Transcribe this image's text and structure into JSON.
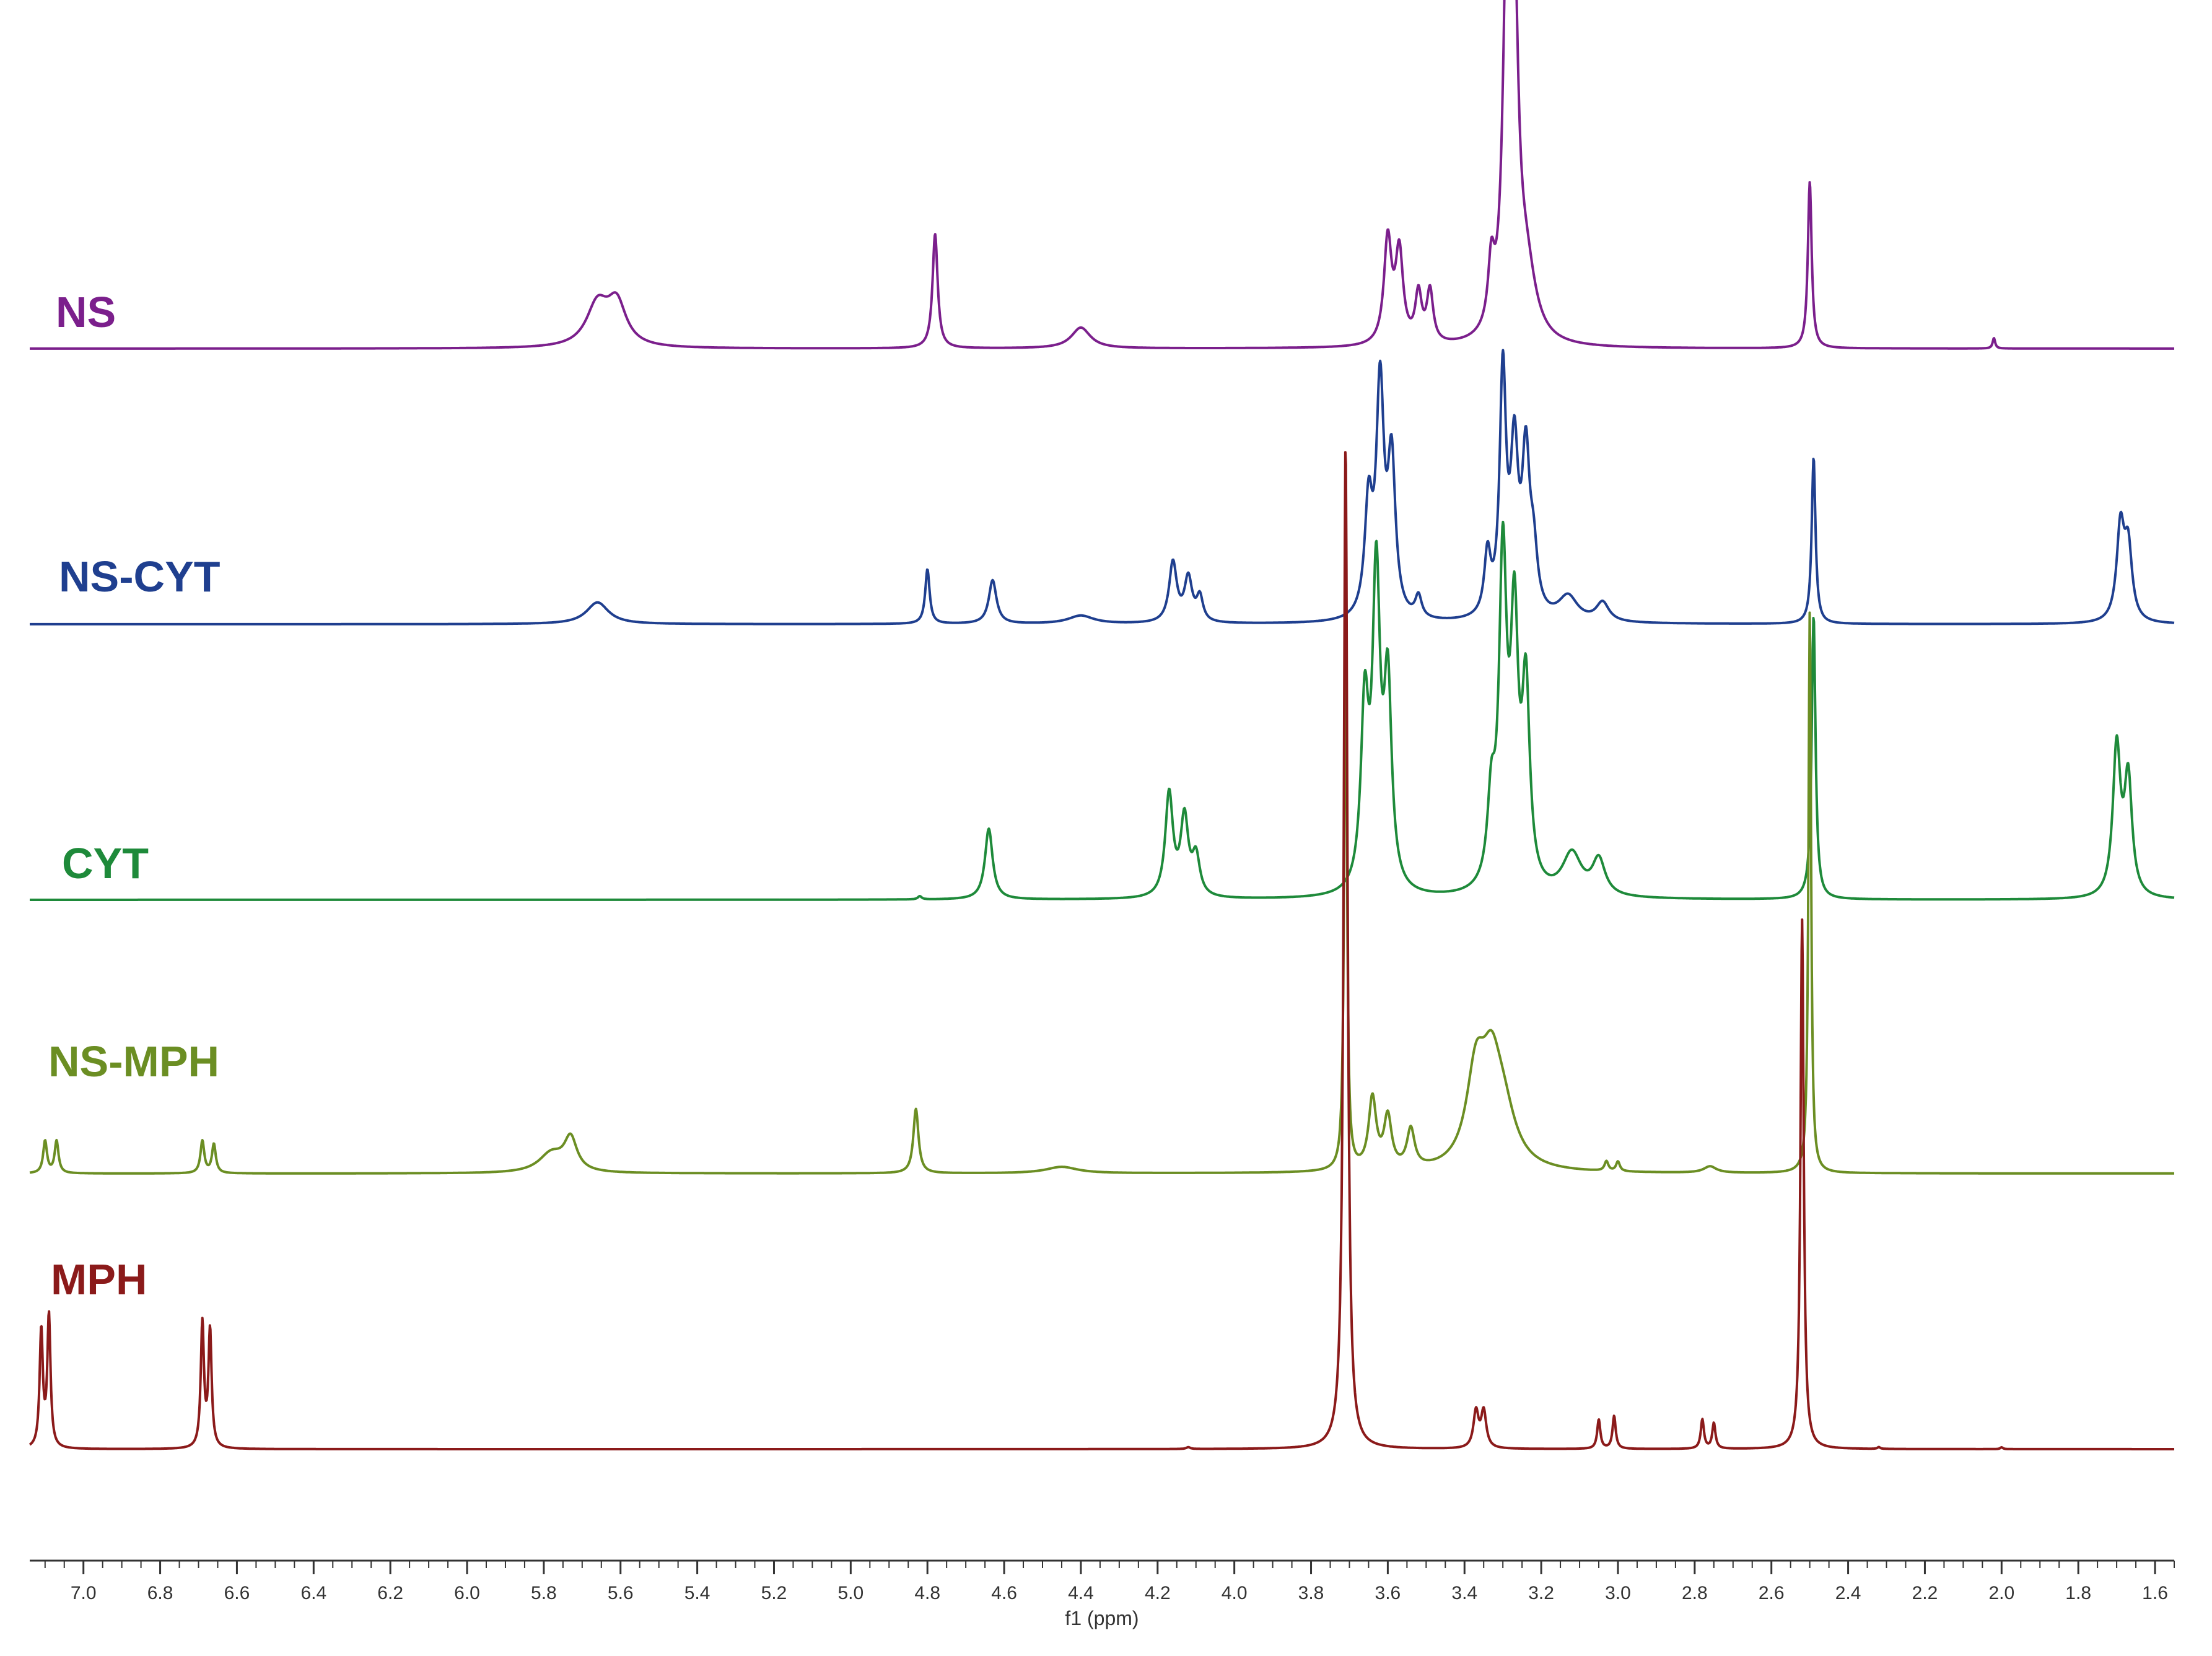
{
  "chart_data": {
    "type": "line",
    "xlabel": "f1 (ppm)",
    "xlim": [
      7.14,
      1.55
    ],
    "x_reversed": true,
    "grid": false,
    "x_ticks": [
      7.0,
      6.8,
      6.6,
      6.4,
      6.2,
      6.0,
      5.8,
      5.6,
      5.4,
      5.2,
      5.0,
      4.8,
      4.6,
      4.4,
      4.2,
      4.0,
      3.8,
      3.6,
      3.4,
      3.2,
      3.0,
      2.8,
      2.6,
      2.4,
      2.2,
      2.0,
      1.8,
      1.6
    ],
    "x_tick_labels": [
      "7.0",
      "6.8",
      "6.6",
      "6.4",
      "6.2",
      "6.0",
      "5.8",
      "5.6",
      "5.4",
      "5.2",
      "5.0",
      "4.8",
      "4.6",
      "4.4",
      "4.2",
      "4.0",
      "3.8",
      "3.6",
      "3.4",
      "3.2",
      "3.0",
      "2.8",
      "2.6",
      "2.4",
      "2.2",
      "2.0",
      "1.8",
      "1.6"
    ],
    "y_units": "relative intensity (stacked traces)",
    "series": [
      {
        "name": "NS",
        "color": "#7B1F8C",
        "x_range": [
          7.14,
          1.55
        ],
        "peaks": [
          {
            "x": 5.66,
            "h": 0.12,
            "w": 0.035
          },
          {
            "x": 5.61,
            "h": 0.12,
            "w": 0.03
          },
          {
            "x": 4.78,
            "h": 0.33,
            "w": 0.008
          },
          {
            "x": 4.4,
            "h": 0.06,
            "w": 0.03
          },
          {
            "x": 3.6,
            "h": 0.3,
            "w": 0.012
          },
          {
            "x": 3.57,
            "h": 0.26,
            "w": 0.012
          },
          {
            "x": 3.52,
            "h": 0.14,
            "w": 0.01
          },
          {
            "x": 3.49,
            "h": 0.15,
            "w": 0.01
          },
          {
            "x": 3.33,
            "h": 0.18,
            "w": 0.01
          },
          {
            "x": 3.29,
            "h": 1.0,
            "w": 0.012
          },
          {
            "x": 3.27,
            "h": 0.88,
            "w": 0.012
          },
          {
            "x": 3.24,
            "h": 0.2,
            "w": 0.03
          },
          {
            "x": 2.5,
            "h": 0.48,
            "w": 0.006
          },
          {
            "x": 2.02,
            "h": 0.03,
            "w": 0.004
          }
        ]
      },
      {
        "name": "NS-CYT",
        "color": "#1F3F8F",
        "x_range": [
          7.14,
          1.55
        ],
        "peaks": [
          {
            "x": 5.66,
            "h": 0.08,
            "w": 0.035
          },
          {
            "x": 4.8,
            "h": 0.2,
            "w": 0.007
          },
          {
            "x": 4.63,
            "h": 0.16,
            "w": 0.012
          },
          {
            "x": 4.4,
            "h": 0.03,
            "w": 0.04
          },
          {
            "x": 4.16,
            "h": 0.22,
            "w": 0.012
          },
          {
            "x": 4.12,
            "h": 0.16,
            "w": 0.012
          },
          {
            "x": 4.09,
            "h": 0.09,
            "w": 0.01
          },
          {
            "x": 3.65,
            "h": 0.4,
            "w": 0.012
          },
          {
            "x": 3.62,
            "h": 0.83,
            "w": 0.012
          },
          {
            "x": 3.59,
            "h": 0.56,
            "w": 0.012
          },
          {
            "x": 3.52,
            "h": 0.08,
            "w": 0.01
          },
          {
            "x": 3.34,
            "h": 0.22,
            "w": 0.01
          },
          {
            "x": 3.3,
            "h": 0.88,
            "w": 0.01
          },
          {
            "x": 3.27,
            "h": 0.58,
            "w": 0.012
          },
          {
            "x": 3.24,
            "h": 0.56,
            "w": 0.012
          },
          {
            "x": 3.22,
            "h": 0.2,
            "w": 0.012
          },
          {
            "x": 3.13,
            "h": 0.09,
            "w": 0.03
          },
          {
            "x": 3.04,
            "h": 0.07,
            "w": 0.02
          },
          {
            "x": 2.49,
            "h": 0.61,
            "w": 0.006
          },
          {
            "x": 1.69,
            "h": 0.34,
            "w": 0.012
          },
          {
            "x": 1.67,
            "h": 0.26,
            "w": 0.012
          }
        ]
      },
      {
        "name": "CYT",
        "color": "#1E8A3A",
        "x_range": [
          7.14,
          1.55
        ],
        "peaks": [
          {
            "x": 4.82,
            "h": 0.01,
            "w": 0.006
          },
          {
            "x": 4.64,
            "h": 0.22,
            "w": 0.012
          },
          {
            "x": 4.17,
            "h": 0.32,
            "w": 0.012
          },
          {
            "x": 4.13,
            "h": 0.24,
            "w": 0.012
          },
          {
            "x": 4.1,
            "h": 0.12,
            "w": 0.012
          },
          {
            "x": 3.66,
            "h": 0.55,
            "w": 0.012
          },
          {
            "x": 3.63,
            "h": 0.95,
            "w": 0.012
          },
          {
            "x": 3.6,
            "h": 0.62,
            "w": 0.012
          },
          {
            "x": 3.33,
            "h": 0.25,
            "w": 0.012
          },
          {
            "x": 3.3,
            "h": 1.0,
            "w": 0.012
          },
          {
            "x": 3.27,
            "h": 0.78,
            "w": 0.012
          },
          {
            "x": 3.24,
            "h": 0.6,
            "w": 0.012
          },
          {
            "x": 3.12,
            "h": 0.13,
            "w": 0.03
          },
          {
            "x": 3.05,
            "h": 0.11,
            "w": 0.02
          },
          {
            "x": 2.49,
            "h": 0.88,
            "w": 0.006
          },
          {
            "x": 1.7,
            "h": 0.46,
            "w": 0.012
          },
          {
            "x": 1.67,
            "h": 0.36,
            "w": 0.012
          }
        ]
      },
      {
        "name": "NS-MPH",
        "color": "#6B8E23",
        "x_range": [
          7.14,
          1.55
        ],
        "peaks": [
          {
            "x": 7.1,
            "h": 0.1,
            "w": 0.006
          },
          {
            "x": 7.07,
            "h": 0.1,
            "w": 0.006
          },
          {
            "x": 6.69,
            "h": 0.1,
            "w": 0.006
          },
          {
            "x": 6.66,
            "h": 0.09,
            "w": 0.006
          },
          {
            "x": 5.78,
            "h": 0.06,
            "w": 0.04
          },
          {
            "x": 5.73,
            "h": 0.1,
            "w": 0.02
          },
          {
            "x": 4.83,
            "h": 0.2,
            "w": 0.008
          },
          {
            "x": 4.45,
            "h": 0.02,
            "w": 0.05
          },
          {
            "x": 3.71,
            "h": 1.85,
            "w": 0.004
          },
          {
            "x": 3.64,
            "h": 0.22,
            "w": 0.012
          },
          {
            "x": 3.6,
            "h": 0.16,
            "w": 0.012
          },
          {
            "x": 3.54,
            "h": 0.12,
            "w": 0.012
          },
          {
            "x": 3.37,
            "h": 0.28,
            "w": 0.03
          },
          {
            "x": 3.33,
            "h": 0.24,
            "w": 0.03
          },
          {
            "x": 3.3,
            "h": 0.16,
            "w": 0.04
          },
          {
            "x": 3.03,
            "h": 0.03,
            "w": 0.006
          },
          {
            "x": 3.0,
            "h": 0.03,
            "w": 0.006
          },
          {
            "x": 2.76,
            "h": 0.02,
            "w": 0.02
          },
          {
            "x": 2.5,
            "h": 1.75,
            "w": 0.004
          }
        ]
      },
      {
        "name": "MPH",
        "color": "#8B1A1A",
        "x_range": [
          7.14,
          1.55
        ],
        "peaks": [
          {
            "x": 7.11,
            "h": 0.32,
            "w": 0.005
          },
          {
            "x": 7.09,
            "h": 0.36,
            "w": 0.005
          },
          {
            "x": 6.69,
            "h": 0.34,
            "w": 0.005
          },
          {
            "x": 6.67,
            "h": 0.32,
            "w": 0.005
          },
          {
            "x": 4.12,
            "h": 0.005,
            "w": 0.006
          },
          {
            "x": 3.71,
            "h": 2.75,
            "w": 0.006
          },
          {
            "x": 3.37,
            "h": 0.1,
            "w": 0.008
          },
          {
            "x": 3.35,
            "h": 0.1,
            "w": 0.008
          },
          {
            "x": 3.05,
            "h": 0.08,
            "w": 0.005
          },
          {
            "x": 3.01,
            "h": 0.09,
            "w": 0.005
          },
          {
            "x": 2.78,
            "h": 0.08,
            "w": 0.005
          },
          {
            "x": 2.75,
            "h": 0.07,
            "w": 0.005
          },
          {
            "x": 2.52,
            "h": 1.45,
            "w": 0.005
          },
          {
            "x": 2.32,
            "h": 0.005,
            "w": 0.004
          },
          {
            "x": 2.0,
            "h": 0.005,
            "w": 0.004
          }
        ]
      }
    ]
  }
}
